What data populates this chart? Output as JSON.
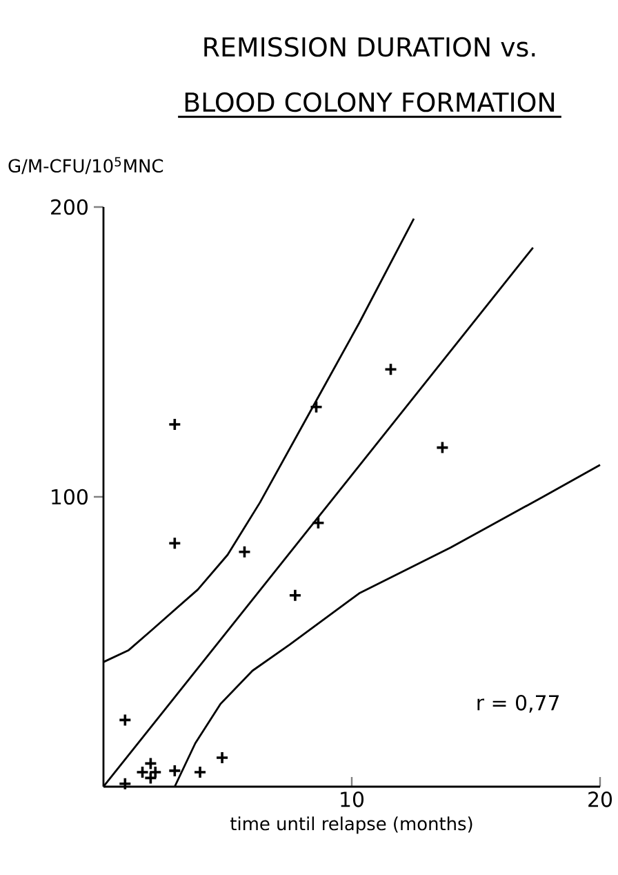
{
  "chart_data": {
    "type": "scatter",
    "title": "REMISSION DURATION vs.",
    "subtitle": "BLOOD COLONY FORMATION",
    "xlabel": "time until relapse (months)",
    "ylabel": "G/M-CFU/10$^{5}$MNC",
    "annotations": [
      "r = 0,77"
    ],
    "xlim": [
      0,
      20
    ],
    "ylim": [
      0,
      200
    ],
    "xticks": [
      10,
      20
    ],
    "yticks": [
      100,
      200
    ],
    "series": [
      {
        "marker": "cross",
        "color": "#000000",
        "x": [
          2.87,
          8.57,
          11.57,
          13.65,
          2.87,
          5.68,
          8.65,
          7.72,
          0.87,
          0.87,
          1.9,
          1.57,
          2.09,
          1.9,
          2.87,
          3.89,
          4.78
        ],
        "values": [
          125,
          131,
          144,
          117,
          84,
          81,
          91,
          66,
          23,
          1,
          8,
          5,
          5,
          3,
          5.5,
          5,
          10
        ]
      },
      {
        "type": "line",
        "marker": "none",
        "color": "#000000",
        "x": [
          0,
          17.3
        ],
        "values": [
          0,
          186
        ]
      },
      {
        "type": "line",
        "marker": "none",
        "color": "#000000",
        "x": [
          0,
          1,
          1.94,
          3.8,
          5,
          6.3,
          8.43,
          10.3,
          12.5
        ],
        "values": [
          43,
          47,
          54,
          68,
          80,
          98,
          131,
          160,
          196
        ]
      },
      {
        "type": "line",
        "marker": "none",
        "color": "#000000",
        "x": [
          2.87,
          3.7,
          4.72,
          6,
          7.5,
          10.3,
          13.98,
          17.7,
          20
        ],
        "values": [
          0,
          15,
          28.6,
          40,
          49,
          66.7,
          82.5,
          100,
          111
        ]
      }
    ]
  }
}
